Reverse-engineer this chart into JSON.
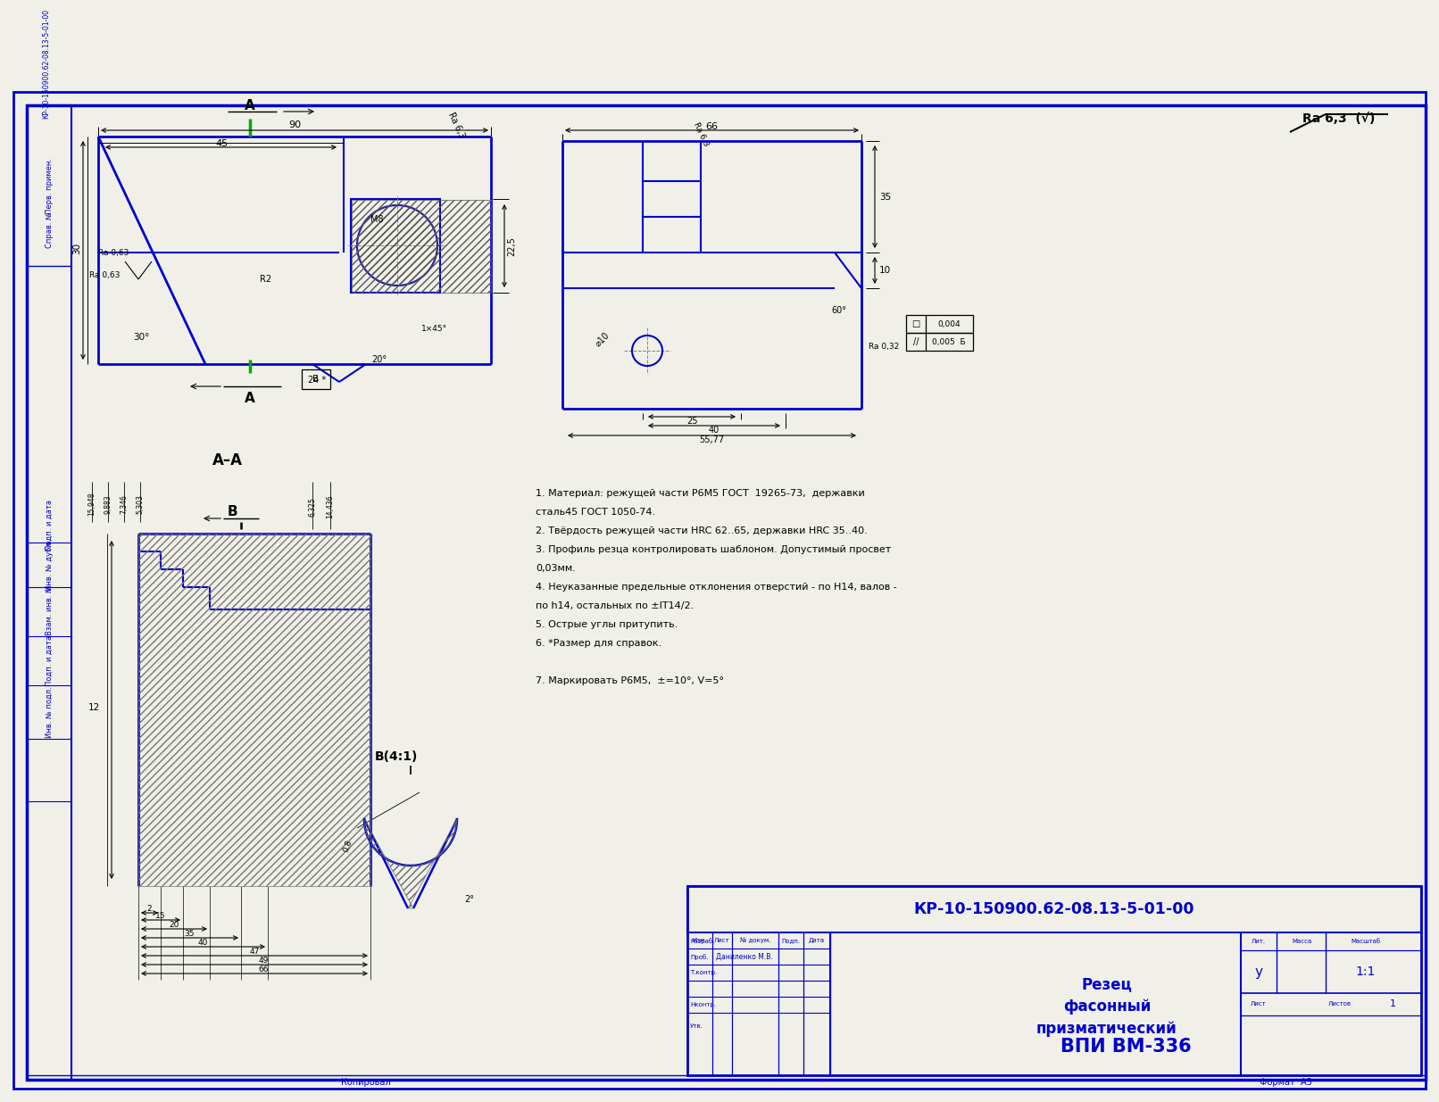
{
  "bg_color": "#f0f0e8",
  "line_color": "#0000cc",
  "text_color": "#000000",
  "blue_text_color": "#0000cc",
  "title_number": "КР-10-150900.62-08.13-5-01-00",
  "drawing_title_line1": "Резец",
  "drawing_title_line2": "фасонный",
  "drawing_title_line3": "призматический",
  "scale": "1:1",
  "lit": "у",
  "sheets": "1",
  "organization": "ВПИ ВМ-336",
  "checker": "Даниленко М.В.",
  "format": "А3",
  "notes": [
    "1. Материал: режущей части Р6М5 ГОСТ  19265-73,  державки",
    "сталь45 ГОСТ 1050-74.",
    "2. Твёрдость режущей части HRC 62..65, державки HRC 35..40.",
    "3. Профиль резца контролировать шаблоном. Допустимый просвет",
    "0,03мм.",
    "4. Неуказанные предельные отклонения отверстий - по Н14, валов -",
    "по h14, остальных по ±IT14/2.",
    "5. Острые углы притупить.",
    "6. *Размер для справок.",
    "",
    "7. Маркировать Р6М5,  ±=10°, V=5°"
  ],
  "section_label": "А–А",
  "view_b_label": "В(4:1)",
  "rotated_text_top": [
    "Перв. примен.",
    "Справ. №"
  ],
  "rotated_text_bottom": [
    "Подп. и дата",
    "Инв. № дубл.",
    "Взам. инв. №",
    "Подп. и дата",
    "Инв. № подл."
  ],
  "bottom_text": "Копировал",
  "ra63_label": "Ra 0,63",
  "ra63_top": "Ra 6,3",
  "ra032": "Ra 0,32",
  "general_ra": "Ra 6,3",
  "drawing_number_rotated": "КР-10-150900.62-08.13-5-01-00"
}
